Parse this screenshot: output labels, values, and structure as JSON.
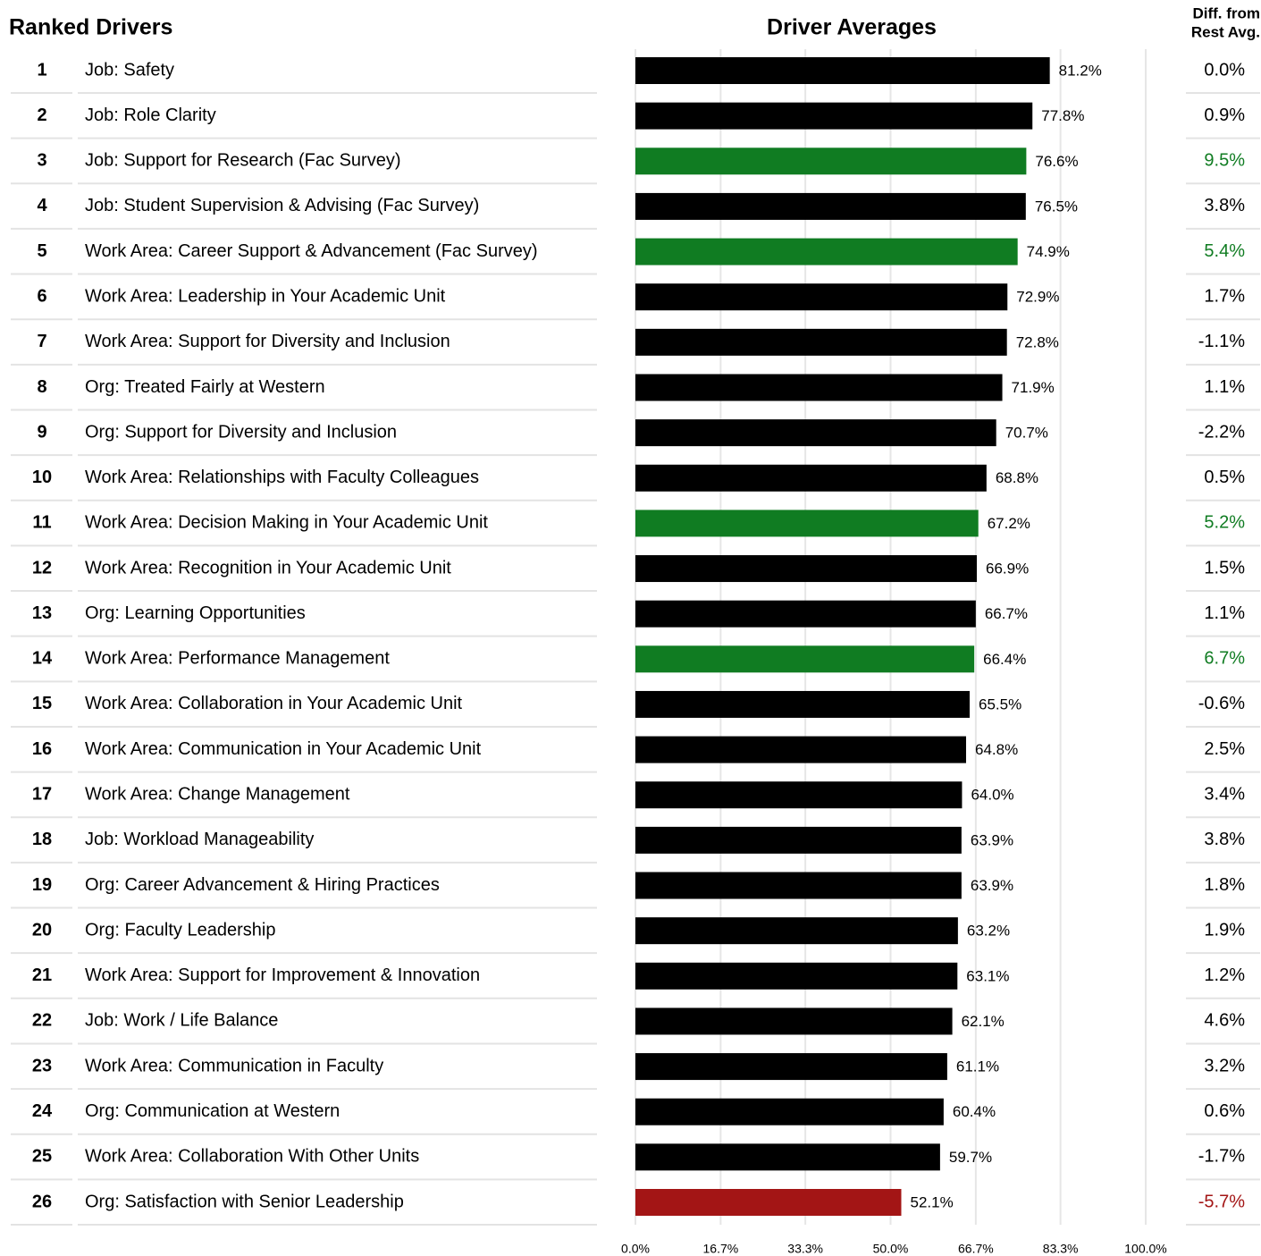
{
  "chart_data": {
    "type": "bar",
    "orientation": "horizontal",
    "table_title": "Ranked Drivers",
    "title": "Driver Averages",
    "diff_title": [
      "Diff. from",
      "Rest Avg."
    ],
    "ranks": [
      1,
      2,
      3,
      4,
      5,
      6,
      7,
      8,
      9,
      10,
      11,
      12,
      13,
      14,
      15,
      16,
      17,
      18,
      19,
      20,
      21,
      22,
      23,
      24,
      25,
      26
    ],
    "categories": [
      "Job: Safety",
      "Job: Role Clarity",
      "Job: Support for Research (Fac Survey)",
      "Job: Student Supervision & Advising (Fac Survey)",
      "Work Area: Career Support & Advancement (Fac Survey)",
      "Work Area: Leadership in Your Academic Unit",
      "Work Area: Support for Diversity and Inclusion",
      "Org: Treated Fairly at Western",
      "Org: Support for Diversity and Inclusion",
      "Work Area: Relationships with Faculty Colleagues",
      "Work Area: Decision Making in Your Academic Unit",
      "Work Area: Recognition in Your Academic Unit",
      "Org: Learning Opportunities",
      "Work Area: Performance Management",
      "Work Area: Collaboration in Your Academic Unit",
      "Work Area: Communication in Your Academic Unit",
      "Work Area: Change Management",
      "Job: Workload Manageability",
      "Org: Career Advancement & Hiring Practices",
      "Org: Faculty Leadership",
      "Work Area: Support for Improvement & Innovation",
      "Job: Work / Life Balance",
      "Work Area: Communication in Faculty",
      "Org: Communication at Western",
      "Work Area: Collaboration With Other Units",
      "Org: Satisfaction with Senior Leadership"
    ],
    "values": [
      81.2,
      77.8,
      76.6,
      76.5,
      74.9,
      72.9,
      72.8,
      71.9,
      70.7,
      68.8,
      67.2,
      66.9,
      66.7,
      66.4,
      65.5,
      64.8,
      64.0,
      63.9,
      63.9,
      63.2,
      63.1,
      62.1,
      61.1,
      60.4,
      59.7,
      52.1
    ],
    "value_labels": [
      "81.2%",
      "77.8%",
      "76.6%",
      "76.5%",
      "74.9%",
      "72.9%",
      "72.8%",
      "71.9%",
      "70.7%",
      "68.8%",
      "67.2%",
      "66.9%",
      "66.7%",
      "66.4%",
      "65.5%",
      "64.8%",
      "64.0%",
      "63.9%",
      "63.9%",
      "63.2%",
      "63.1%",
      "62.1%",
      "61.1%",
      "60.4%",
      "59.7%",
      "52.1%"
    ],
    "colors": [
      "#000000",
      "#000000",
      "#107c22",
      "#000000",
      "#107c22",
      "#000000",
      "#000000",
      "#000000",
      "#000000",
      "#000000",
      "#107c22",
      "#000000",
      "#000000",
      "#107c22",
      "#000000",
      "#000000",
      "#000000",
      "#000000",
      "#000000",
      "#000000",
      "#000000",
      "#000000",
      "#000000",
      "#000000",
      "#000000",
      "#a31515"
    ],
    "diff_from_rest_avg": [
      "0.0%",
      "0.9%",
      "9.5%",
      "3.8%",
      "5.4%",
      "1.7%",
      "-1.1%",
      "1.1%",
      "-2.2%",
      "0.5%",
      "5.2%",
      "1.5%",
      "1.1%",
      "6.7%",
      "-0.6%",
      "2.5%",
      "3.4%",
      "3.8%",
      "1.8%",
      "1.9%",
      "1.2%",
      "4.6%",
      "3.2%",
      "0.6%",
      "-1.7%",
      "-5.7%"
    ],
    "xlim": [
      0,
      100
    ],
    "xticks": [
      {
        "value": 0,
        "label": "0.0%"
      },
      {
        "value": 16.7,
        "label": "16.7%"
      },
      {
        "value": 33.3,
        "label": "33.3%"
      },
      {
        "value": 50,
        "label": "50.0%"
      },
      {
        "value": 66.7,
        "label": "66.7%"
      },
      {
        "value": 83.3,
        "label": "83.3%"
      },
      {
        "value": 100,
        "label": "100.0%"
      }
    ],
    "grid": true
  }
}
